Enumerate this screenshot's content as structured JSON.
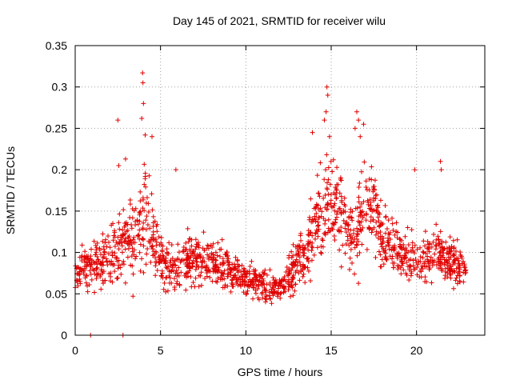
{
  "chart_data": {
    "type": "scatter",
    "title": "Day 145 of 2021, SRMTID for receiver wilu",
    "xlabel": "GPS time / hours",
    "ylabel": "SRMTID / TECUs",
    "xlim": [
      0,
      24
    ],
    "ylim": [
      0,
      0.35
    ],
    "xticks": [
      0,
      5,
      10,
      15,
      20
    ],
    "xtick_labels": [
      "0",
      "5",
      "10",
      "15",
      "20"
    ],
    "yticks": [
      0,
      0.05,
      0.1,
      0.15,
      0.2,
      0.25,
      0.3,
      0.35
    ],
    "ytick_labels": [
      "0",
      "0.05",
      "0.1",
      "0.15",
      "0.2",
      "0.25",
      "0.3",
      "0.35"
    ],
    "grid": true,
    "marker": "+",
    "color": "#e00000",
    "trend": {
      "x": [
        0,
        0.5,
        1,
        1.5,
        2,
        2.5,
        3,
        3.5,
        4,
        4.5,
        5,
        5.5,
        6,
        6.5,
        7,
        7.5,
        8,
        8.5,
        9,
        9.5,
        10,
        10.5,
        11,
        11.5,
        12,
        12.5,
        13,
        13.5,
        14,
        14.5,
        15,
        15.5,
        16,
        16.5,
        17,
        17.5,
        18,
        18.5,
        19,
        19.5,
        20,
        20.5,
        21,
        21.5,
        22,
        22.5,
        22.9
      ],
      "center": [
        0.07,
        0.08,
        0.085,
        0.09,
        0.095,
        0.1,
        0.11,
        0.12,
        0.14,
        0.13,
        0.09,
        0.08,
        0.085,
        0.09,
        0.09,
        0.09,
        0.085,
        0.085,
        0.08,
        0.075,
        0.07,
        0.065,
        0.06,
        0.055,
        0.06,
        0.07,
        0.085,
        0.1,
        0.13,
        0.15,
        0.16,
        0.15,
        0.12,
        0.12,
        0.16,
        0.15,
        0.12,
        0.11,
        0.1,
        0.09,
        0.09,
        0.095,
        0.1,
        0.095,
        0.09,
        0.085,
        0.08
      ],
      "spread": [
        0.02,
        0.025,
        0.03,
        0.03,
        0.035,
        0.04,
        0.05,
        0.06,
        0.07,
        0.05,
        0.03,
        0.03,
        0.03,
        0.03,
        0.03,
        0.03,
        0.03,
        0.03,
        0.025,
        0.025,
        0.02,
        0.02,
        0.02,
        0.02,
        0.02,
        0.025,
        0.03,
        0.04,
        0.05,
        0.06,
        0.06,
        0.05,
        0.04,
        0.05,
        0.06,
        0.05,
        0.04,
        0.035,
        0.03,
        0.03,
        0.03,
        0.03,
        0.03,
        0.03,
        0.03,
        0.03,
        0.02
      ]
    },
    "peaks": [
      {
        "x": 2.5,
        "y": 0.26
      },
      {
        "x": 2.55,
        "y": 0.205
      },
      {
        "x": 3.95,
        "y": 0.317
      },
      {
        "x": 3.97,
        "y": 0.305
      },
      {
        "x": 4.0,
        "y": 0.28
      },
      {
        "x": 3.9,
        "y": 0.262
      },
      {
        "x": 4.1,
        "y": 0.242
      },
      {
        "x": 4.5,
        "y": 0.24
      },
      {
        "x": 2.95,
        "y": 0.213
      },
      {
        "x": 5.9,
        "y": 0.2
      },
      {
        "x": 14.75,
        "y": 0.3
      },
      {
        "x": 14.8,
        "y": 0.29
      },
      {
        "x": 14.7,
        "y": 0.27
      },
      {
        "x": 14.6,
        "y": 0.26
      },
      {
        "x": 14.9,
        "y": 0.24
      },
      {
        "x": 13.9,
        "y": 0.245
      },
      {
        "x": 16.5,
        "y": 0.27
      },
      {
        "x": 16.6,
        "y": 0.26
      },
      {
        "x": 16.9,
        "y": 0.255
      },
      {
        "x": 16.4,
        "y": 0.25
      },
      {
        "x": 16.7,
        "y": 0.24
      },
      {
        "x": 19.9,
        "y": 0.2
      },
      {
        "x": 21.4,
        "y": 0.21
      },
      {
        "x": 21.45,
        "y": 0.2
      },
      {
        "x": 0.9,
        "y": 0.0
      },
      {
        "x": 2.8,
        "y": 0.0
      }
    ]
  }
}
